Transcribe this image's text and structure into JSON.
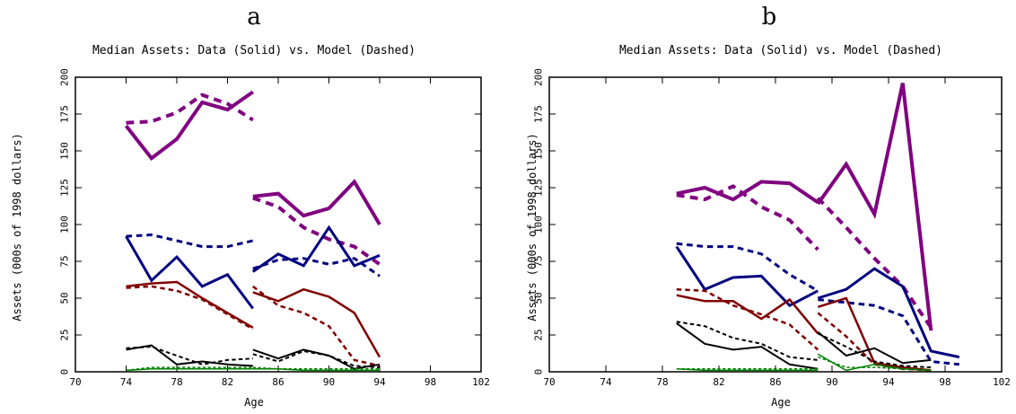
{
  "colors": {
    "purple": "#800080",
    "blue": "#000080",
    "red": "#800000",
    "black": "#000000",
    "green": "#008000"
  },
  "chart_data": [
    {
      "type": "line",
      "panel_label": "a",
      "title": "Median Assets:  Data (Solid) vs. Model (Dashed)",
      "xlabel": "Age",
      "ylabel": "Assets (000s of 1998 dollars)",
      "xlim": [
        70,
        102
      ],
      "ylim": [
        0,
        200
      ],
      "xticks": [
        70,
        74,
        78,
        82,
        86,
        90,
        94,
        98,
        102
      ],
      "yticks": [
        0,
        25,
        50,
        75,
        100,
        125,
        150,
        175,
        200
      ],
      "grid": false,
      "series": [
        {
          "style": "solid",
          "color": "purple",
          "width": 4,
          "x": [
            74,
            76,
            78,
            80,
            82,
            84
          ],
          "y": [
            167,
            145,
            158,
            183,
            178,
            190
          ]
        },
        {
          "style": "dashed",
          "color": "purple",
          "width": 4,
          "x": [
            74,
            76,
            78,
            80,
            82,
            84
          ],
          "y": [
            169,
            170,
            176,
            188,
            182,
            171
          ]
        },
        {
          "style": "solid",
          "color": "blue",
          "width": 3,
          "x": [
            74,
            76,
            78,
            80,
            82,
            84
          ],
          "y": [
            92,
            62,
            78,
            58,
            66,
            43
          ]
        },
        {
          "style": "dashed",
          "color": "blue",
          "width": 3,
          "x": [
            74,
            76,
            78,
            80,
            82,
            84
          ],
          "y": [
            92,
            93,
            89,
            85,
            85,
            89
          ]
        },
        {
          "style": "solid",
          "color": "red",
          "width": 2.5,
          "x": [
            74,
            76,
            78,
            80,
            82,
            84
          ],
          "y": [
            58,
            60,
            61,
            50,
            40,
            30
          ]
        },
        {
          "style": "dashed",
          "color": "red",
          "width": 2.5,
          "x": [
            74,
            76,
            78,
            80,
            82,
            84
          ],
          "y": [
            57,
            58,
            55,
            49,
            39,
            29
          ]
        },
        {
          "style": "solid",
          "color": "black",
          "width": 2,
          "x": [
            74,
            76,
            78,
            80,
            82,
            84
          ],
          "y": [
            15,
            18,
            5,
            7,
            5,
            4
          ]
        },
        {
          "style": "dashed",
          "color": "black",
          "width": 2,
          "x": [
            74,
            76,
            78,
            80,
            82,
            84
          ],
          "y": [
            16,
            17,
            11,
            5,
            8,
            9
          ]
        },
        {
          "style": "solid",
          "color": "green",
          "width": 1.5,
          "x": [
            74,
            76,
            78,
            80,
            82,
            84
          ],
          "y": [
            1,
            2,
            2,
            2,
            2,
            2
          ]
        },
        {
          "style": "dashed",
          "color": "green",
          "width": 1.5,
          "x": [
            74,
            76,
            78,
            80,
            82,
            84
          ],
          "y": [
            1,
            3,
            3,
            3,
            3,
            3
          ]
        },
        {
          "style": "solid",
          "color": "purple",
          "width": 4,
          "x": [
            84,
            86,
            88,
            90,
            92,
            94
          ],
          "y": [
            119,
            121,
            106,
            111,
            129,
            100
          ]
        },
        {
          "style": "dashed",
          "color": "purple",
          "width": 4,
          "x": [
            84,
            86,
            88,
            90,
            92,
            94
          ],
          "y": [
            118,
            112,
            98,
            90,
            85,
            73
          ]
        },
        {
          "style": "solid",
          "color": "blue",
          "width": 3,
          "x": [
            84,
            86,
            88,
            90,
            92,
            94
          ],
          "y": [
            68,
            80,
            72,
            98,
            72,
            79
          ]
        },
        {
          "style": "dashed",
          "color": "blue",
          "width": 3,
          "x": [
            84,
            86,
            88,
            90,
            92,
            94
          ],
          "y": [
            70,
            76,
            77,
            73,
            77,
            65
          ]
        },
        {
          "style": "solid",
          "color": "red",
          "width": 2.5,
          "x": [
            84,
            86,
            88,
            90,
            92,
            94
          ],
          "y": [
            54,
            48,
            56,
            51,
            40,
            10
          ]
        },
        {
          "style": "dashed",
          "color": "red",
          "width": 2.5,
          "x": [
            84,
            86,
            88,
            90,
            92,
            94
          ],
          "y": [
            58,
            45,
            40,
            31,
            8,
            4
          ]
        },
        {
          "style": "solid",
          "color": "black",
          "width": 2,
          "x": [
            84,
            86,
            88,
            90,
            92,
            94
          ],
          "y": [
            15,
            9,
            15,
            11,
            2,
            5
          ]
        },
        {
          "style": "dashed",
          "color": "black",
          "width": 2,
          "x": [
            84,
            86,
            88,
            90,
            92,
            94
          ],
          "y": [
            12,
            7,
            14,
            11,
            4,
            3
          ]
        },
        {
          "style": "solid",
          "color": "green",
          "width": 1.5,
          "x": [
            84,
            86,
            88,
            90,
            92,
            94
          ],
          "y": [
            2,
            2,
            1,
            1,
            1,
            1
          ]
        },
        {
          "style": "dashed",
          "color": "green",
          "width": 1.5,
          "x": [
            84,
            86,
            88,
            90,
            92,
            94
          ],
          "y": [
            3,
            2,
            2,
            2,
            2,
            2
          ]
        }
      ]
    },
    {
      "type": "line",
      "panel_label": "b",
      "title": "Median Assets:  Data (Solid) vs. Model (Dashed)",
      "xlabel": "Age",
      "ylabel": "Assets (000s of 1998 dollars)",
      "xlim": [
        70,
        102
      ],
      "ylim": [
        0,
        200
      ],
      "xticks": [
        70,
        74,
        78,
        82,
        86,
        90,
        94,
        98,
        102
      ],
      "yticks": [
        0,
        25,
        50,
        75,
        100,
        125,
        150,
        175,
        200
      ],
      "grid": false,
      "series": [
        {
          "style": "solid",
          "color": "purple",
          "width": 4,
          "x": [
            79,
            81,
            83,
            85,
            87,
            89
          ],
          "y": [
            121,
            125,
            117,
            129,
            128,
            115
          ]
        },
        {
          "style": "dashed",
          "color": "purple",
          "width": 4,
          "x": [
            79,
            81,
            83,
            85,
            87,
            89
          ],
          "y": [
            120,
            117,
            126,
            112,
            103,
            83
          ]
        },
        {
          "style": "solid",
          "color": "blue",
          "width": 3,
          "x": [
            79,
            81,
            83,
            85,
            87,
            89
          ],
          "y": [
            85,
            56,
            64,
            65,
            45,
            55
          ]
        },
        {
          "style": "dashed",
          "color": "blue",
          "width": 3,
          "x": [
            79,
            81,
            83,
            85,
            87,
            89
          ],
          "y": [
            87,
            85,
            85,
            80,
            66,
            55
          ]
        },
        {
          "style": "solid",
          "color": "red",
          "width": 2.5,
          "x": [
            79,
            81,
            83,
            85,
            87,
            89
          ],
          "y": [
            52,
            48,
            48,
            36,
            49,
            26
          ]
        },
        {
          "style": "dashed",
          "color": "red",
          "width": 2.5,
          "x": [
            79,
            81,
            83,
            85,
            87,
            89
          ],
          "y": [
            56,
            55,
            45,
            39,
            32,
            15
          ]
        },
        {
          "style": "solid",
          "color": "black",
          "width": 2,
          "x": [
            79,
            81,
            83,
            85,
            87,
            89
          ],
          "y": [
            33,
            19,
            15,
            17,
            5,
            2
          ]
        },
        {
          "style": "dashed",
          "color": "black",
          "width": 2,
          "x": [
            79,
            81,
            83,
            85,
            87,
            89
          ],
          "y": [
            34,
            31,
            23,
            19,
            10,
            8
          ]
        },
        {
          "style": "solid",
          "color": "green",
          "width": 1.5,
          "x": [
            79,
            81,
            83,
            85,
            87,
            89
          ],
          "y": [
            2,
            1,
            1,
            1,
            1,
            1
          ]
        },
        {
          "style": "dashed",
          "color": "green",
          "width": 1.5,
          "x": [
            79,
            81,
            83,
            85,
            87,
            89
          ],
          "y": [
            2,
            2,
            2,
            2,
            2,
            2
          ]
        },
        {
          "style": "solid",
          "color": "purple",
          "width": 4,
          "x": [
            89,
            91,
            93,
            95,
            97
          ],
          "y": [
            114,
            141,
            107,
            196,
            28
          ]
        },
        {
          "style": "dashed",
          "color": "purple",
          "width": 4,
          "x": [
            89,
            91,
            93,
            95,
            97
          ],
          "y": [
            118,
            98,
            77,
            58,
            30
          ]
        },
        {
          "style": "solid",
          "color": "blue",
          "width": 3,
          "x": [
            89,
            91,
            93,
            95,
            97,
            99
          ],
          "y": [
            50,
            56,
            70,
            58,
            14,
            10
          ]
        },
        {
          "style": "dashed",
          "color": "blue",
          "width": 3,
          "x": [
            89,
            91,
            93,
            95,
            97,
            99
          ],
          "y": [
            49,
            47,
            45,
            38,
            7,
            5
          ]
        },
        {
          "style": "solid",
          "color": "red",
          "width": 2.5,
          "x": [
            89,
            91,
            93,
            95,
            97
          ],
          "y": [
            44,
            50,
            6,
            3,
            1
          ]
        },
        {
          "style": "dashed",
          "color": "red",
          "width": 2.5,
          "x": [
            89,
            91,
            93,
            95,
            97
          ],
          "y": [
            40,
            24,
            5,
            2,
            1
          ]
        },
        {
          "style": "solid",
          "color": "black",
          "width": 2,
          "x": [
            89,
            91,
            93,
            95,
            97
          ],
          "y": [
            27,
            11,
            16,
            6,
            8
          ]
        },
        {
          "style": "dashed",
          "color": "black",
          "width": 2,
          "x": [
            89,
            91,
            93,
            95,
            97
          ],
          "y": [
            26,
            17,
            7,
            4,
            3
          ]
        },
        {
          "style": "solid",
          "color": "green",
          "width": 1.5,
          "x": [
            89,
            91,
            93,
            95,
            97
          ],
          "y": [
            12,
            1,
            5,
            2,
            1
          ]
        },
        {
          "style": "dashed",
          "color": "green",
          "width": 1.5,
          "x": [
            89,
            91,
            93,
            95,
            97
          ],
          "y": [
            10,
            3,
            3,
            2,
            1
          ]
        }
      ]
    }
  ]
}
